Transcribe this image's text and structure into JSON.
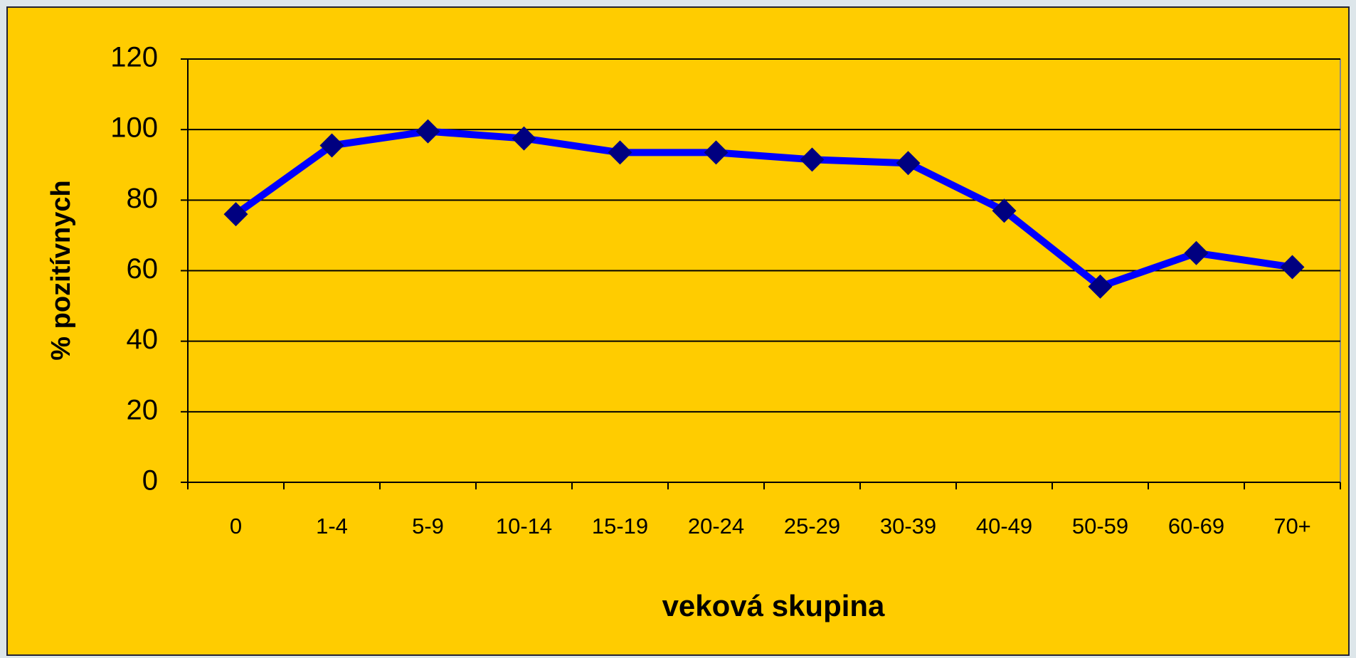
{
  "chart_data": {
    "type": "line",
    "x_label": "veková skupina",
    "y_label": "% pozitívnych",
    "categories": [
      "0",
      "1-4",
      "5-9",
      "10-14",
      "15-19",
      "20-24",
      "25-29",
      "30-39",
      "40-49",
      "50-59",
      "60-69",
      "70+"
    ],
    "series": [
      {
        "name": "% pozitívnych",
        "color": "#0000ff",
        "marker_color": "#000080",
        "values": [
          76,
          95.5,
          99.5,
          97.5,
          93.5,
          93.5,
          91.5,
          90.5,
          77,
          55.5,
          65,
          61
        ]
      }
    ],
    "ylim": [
      0,
      120
    ],
    "yticks": [
      0,
      20,
      40,
      60,
      80,
      100,
      120
    ],
    "grid": true
  }
}
